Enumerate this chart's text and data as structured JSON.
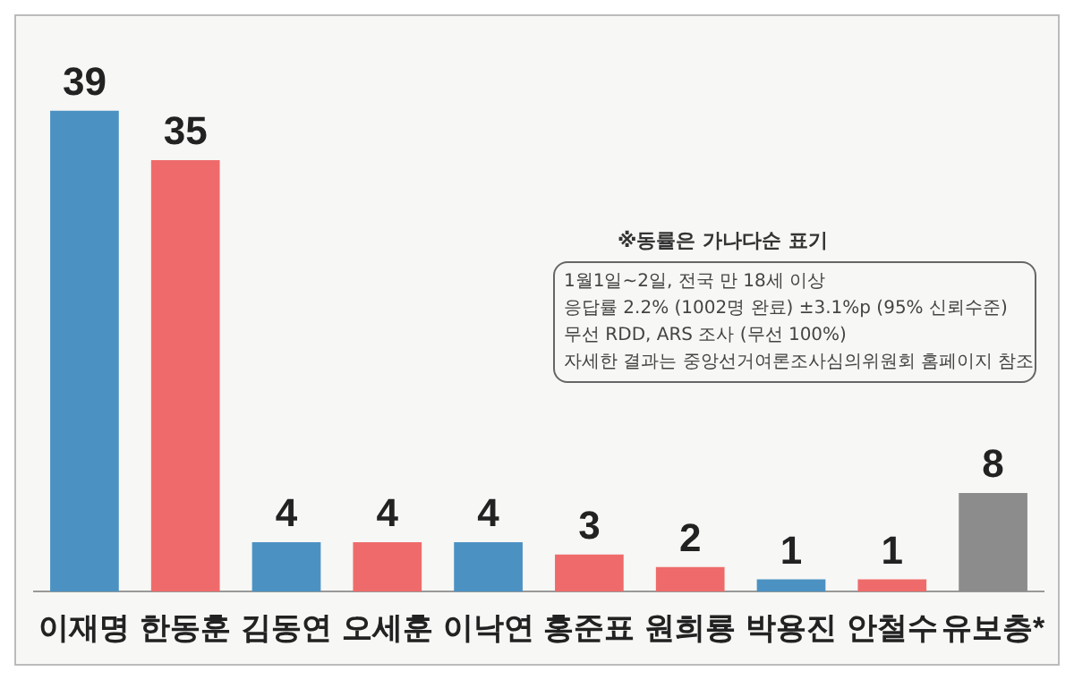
{
  "chart_data": {
    "type": "bar",
    "categories": [
      "이재명",
      "한동훈",
      "김동연",
      "오세훈",
      "이낙연",
      "홍준표",
      "원희룡",
      "박용진",
      "안철수",
      "유보층*"
    ],
    "values": [
      39,
      35,
      4,
      4,
      4,
      3,
      2,
      1,
      1,
      8
    ],
    "colors": [
      "#4b92c3",
      "#ef6b6b",
      "#4b92c3",
      "#ef6b6b",
      "#4b92c3",
      "#ef6b6b",
      "#ef6b6b",
      "#4b92c3",
      "#ef6b6b",
      "#8c8c8c"
    ],
    "data_labels": true,
    "grid": false,
    "legend": false,
    "annotations": [
      "※동률은 가나다순 표기",
      "1월1일~2일, 전국 만 18세 이상",
      "응답률 2.2% (1002명 완료) ±3.1%p (95% 신뢰수준)",
      "무선 RDD, ARS 조사 (무선 100%)",
      "자세한 결과는 중앙선거여론조사심의위원회 홈페이지 참조"
    ]
  }
}
